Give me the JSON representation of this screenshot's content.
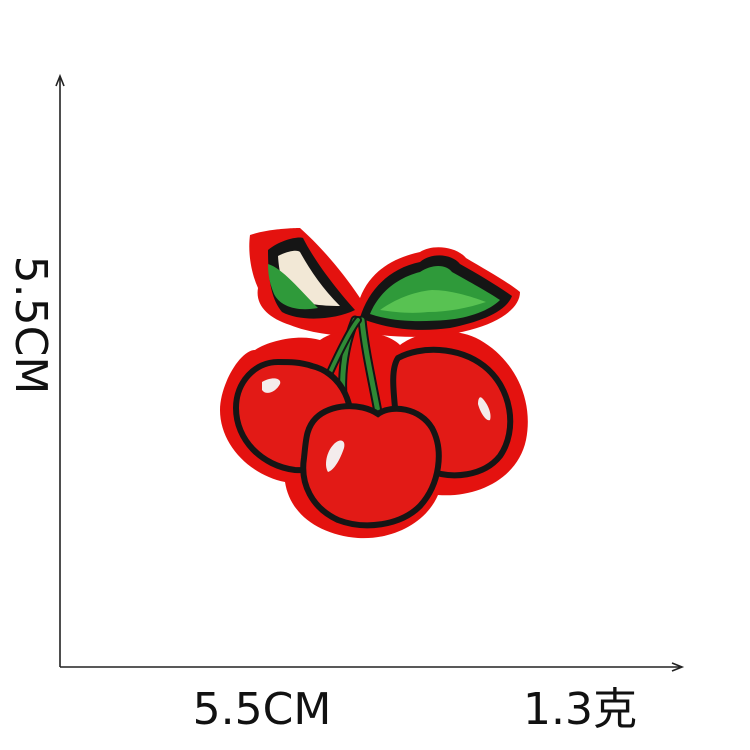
{
  "dimensions": {
    "height": "5.5CM",
    "width": "5.5CM",
    "weight": "1.3克"
  },
  "product": {
    "icon": "cherry-embroidered-patch-icon",
    "colors": {
      "patch_red": "#e4120f",
      "cherry_red": "#e21a16",
      "outline": "#151515",
      "leaf_green": "#2f9a3a",
      "leaf_light": "#58c252",
      "highlight": "#f4ecec",
      "stem_green": "#2f8a35",
      "background": "#ffffff",
      "axis": "#222222"
    }
  }
}
